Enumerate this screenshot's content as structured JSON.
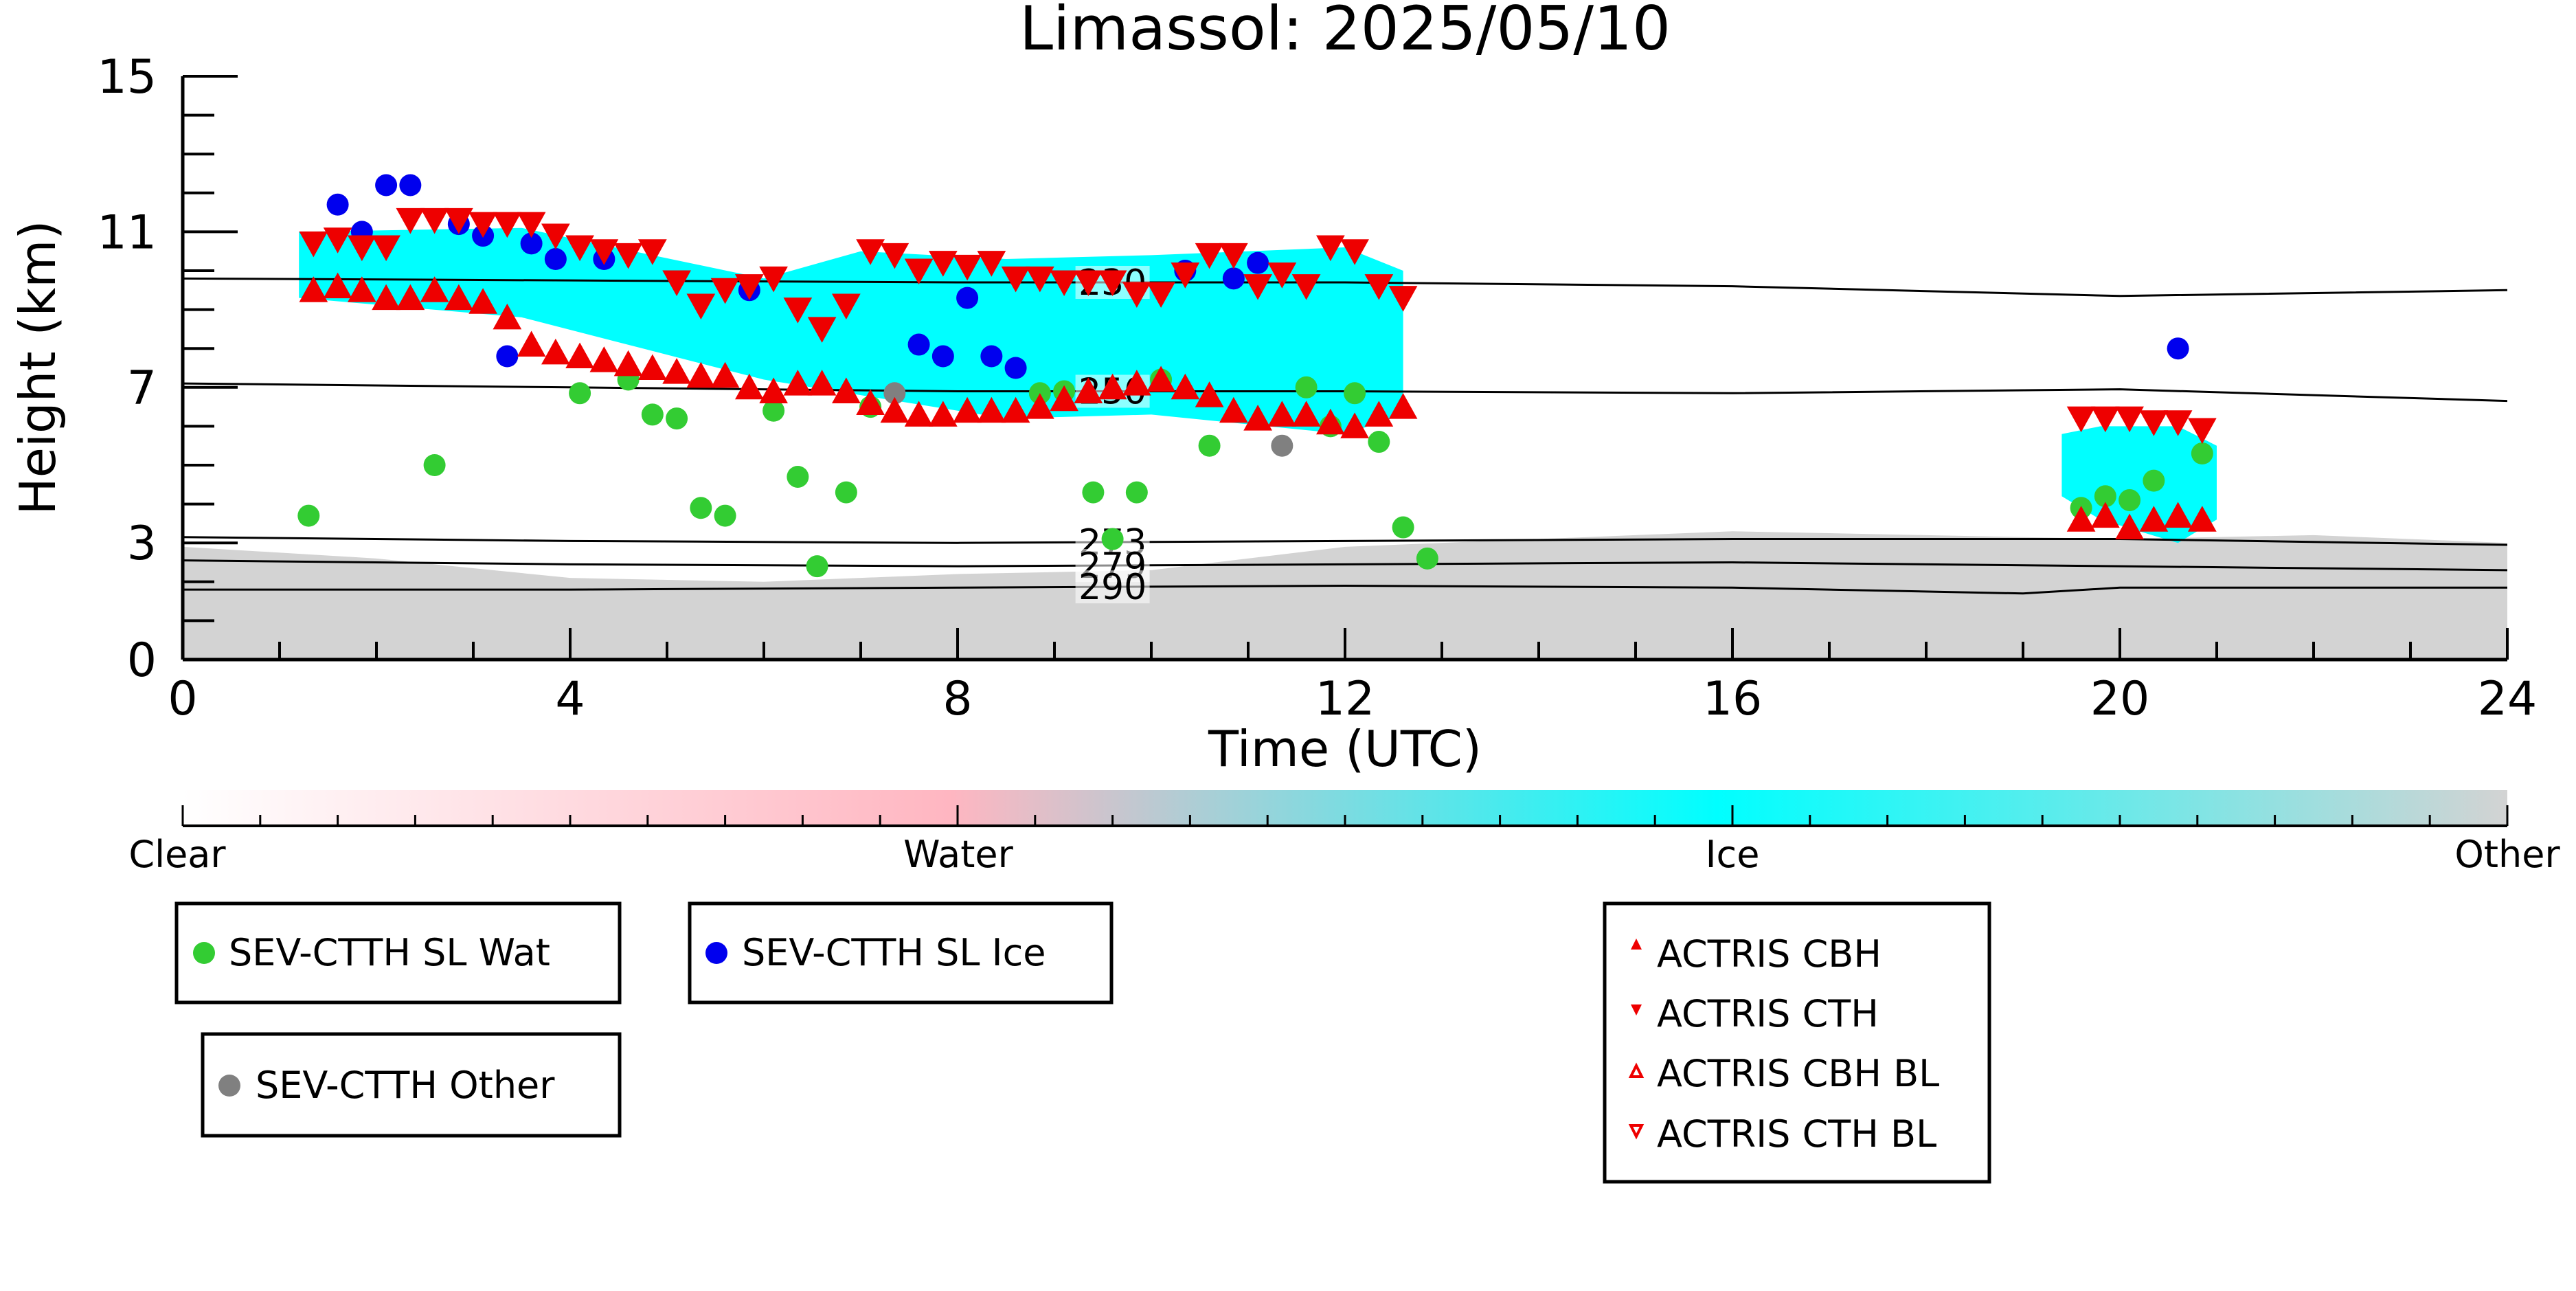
{
  "chart_data": {
    "type": "scatter",
    "title": "Limassol: 2025/05/10",
    "xlabel": "Time (UTC)",
    "ylabel": "Height (km)",
    "xlim": [
      0,
      24
    ],
    "ylim": [
      0,
      15
    ],
    "x_ticks": [
      "0",
      "4",
      "8",
      "12",
      "16",
      "20",
      "24"
    ],
    "y_ticks": [
      "0",
      "3",
      "7",
      "11",
      "15"
    ],
    "colorbar": {
      "labels": [
        "Clear",
        "Water",
        "Ice",
        "Other"
      ],
      "colors": [
        "#ffffff",
        "#ffb6c1",
        "#00ffff",
        "#d3d3d3"
      ]
    },
    "isotherms": [
      {
        "label": "230",
        "x": [
          0,
          4,
          8,
          12,
          16,
          20,
          24
        ],
        "y": [
          9.8,
          9.75,
          9.7,
          9.7,
          9.6,
          9.35,
          9.5
        ]
      },
      {
        "label": "250",
        "x": [
          0,
          4,
          8,
          12,
          16,
          20,
          24
        ],
        "y": [
          7.1,
          7.0,
          6.9,
          6.9,
          6.85,
          6.95,
          6.65
        ]
      },
      {
        "label": "273",
        "x": [
          0,
          4,
          8,
          12,
          16,
          20,
          24
        ],
        "y": [
          3.15,
          3.05,
          3.0,
          3.05,
          3.1,
          3.1,
          2.95
        ]
      },
      {
        "label": "279",
        "x": [
          0,
          4,
          8,
          12,
          16,
          20,
          24
        ],
        "y": [
          2.55,
          2.45,
          2.4,
          2.45,
          2.5,
          2.4,
          2.3
        ]
      },
      {
        "label": "290",
        "x": [
          0,
          4,
          8,
          12,
          16,
          19,
          20,
          24
        ],
        "y": [
          1.8,
          1.8,
          1.85,
          1.9,
          1.85,
          1.7,
          1.85,
          1.85
        ]
      }
    ],
    "background_clutter": {
      "color": "#d3d3d3",
      "x": [
        0,
        2,
        4,
        6,
        8,
        10,
        12,
        14,
        16,
        18,
        20,
        22,
        24
      ],
      "top": [
        2.9,
        2.6,
        2.1,
        2.0,
        2.2,
        2.3,
        2.9,
        3.1,
        3.3,
        3.2,
        3.1,
        3.2,
        3.0
      ]
    },
    "cloud_regions": [
      {
        "color": "#00ffff",
        "x": [
          1.2,
          3.5,
          6.0,
          7.0,
          8.5,
          10.0,
          12.0,
          12.6
        ],
        "top": [
          11.0,
          11.1,
          9.8,
          10.5,
          10.3,
          10.4,
          10.6,
          10.0
        ],
        "bottom": [
          9.3,
          8.8,
          7.2,
          6.8,
          6.2,
          6.3,
          5.8,
          6.3
        ]
      },
      {
        "color": "#00ffff",
        "x": [
          19.4,
          19.8,
          20.6,
          21.0
        ],
        "top": [
          5.8,
          6.0,
          6.0,
          5.5
        ],
        "bottom": [
          4.2,
          3.6,
          3.0,
          3.6
        ]
      }
    ],
    "series": [
      {
        "name": "SEV-CTTH SL Wat",
        "marker": "circle",
        "color": "#33cc33",
        "x": [
          1.3,
          2.6,
          4.1,
          4.6,
          4.85,
          5.1,
          5.35,
          5.6,
          6.1,
          6.35,
          6.55,
          6.85,
          7.1,
          8.85,
          9.1,
          9.4,
          9.6,
          9.85,
          10.1,
          10.6,
          11.6,
          11.85,
          12.1,
          12.35,
          12.6,
          12.85,
          19.6,
          19.85,
          20.1,
          20.35,
          20.85
        ],
        "y": [
          3.7,
          5.0,
          6.85,
          7.2,
          6.3,
          6.2,
          3.9,
          3.7,
          6.4,
          4.7,
          2.4,
          4.3,
          6.5,
          6.85,
          6.9,
          4.3,
          3.1,
          4.3,
          7.2,
          5.5,
          7.0,
          6.0,
          6.85,
          5.6,
          3.4,
          2.6,
          3.9,
          4.2,
          4.1,
          4.6,
          5.3
        ]
      },
      {
        "name": "SEV-CTTH SL Ice",
        "marker": "circle",
        "color": "#0000ee",
        "x": [
          1.6,
          1.85,
          2.1,
          2.35,
          2.85,
          3.1,
          3.35,
          3.6,
          3.85,
          4.35,
          5.85,
          7.6,
          7.85,
          8.1,
          8.35,
          8.6,
          10.35,
          10.85,
          11.1,
          20.6
        ],
        "y": [
          11.7,
          11.0,
          12.2,
          12.2,
          11.2,
          10.9,
          7.8,
          10.7,
          10.3,
          10.3,
          9.5,
          8.1,
          7.8,
          9.3,
          7.8,
          7.5,
          10.0,
          9.8,
          10.2,
          8.0
        ]
      },
      {
        "name": "SEV-CTTH Other",
        "marker": "circle",
        "color": "#808080",
        "x": [
          7.35,
          11.35
        ],
        "y": [
          6.85,
          5.5
        ]
      },
      {
        "name": "ACTRIS CBH",
        "marker": "triangle-up",
        "color": "#ee0000",
        "x": [
          1.35,
          1.6,
          1.85,
          2.1,
          2.35,
          2.6,
          2.85,
          3.1,
          3.35,
          3.6,
          3.85,
          4.1,
          4.35,
          4.6,
          4.85,
          5.1,
          5.35,
          5.6,
          5.85,
          6.1,
          6.35,
          6.6,
          6.85,
          7.1,
          7.35,
          7.6,
          7.85,
          8.1,
          8.35,
          8.6,
          8.85,
          9.1,
          9.35,
          9.6,
          9.85,
          10.1,
          10.35,
          10.6,
          10.85,
          11.1,
          11.35,
          11.6,
          11.85,
          12.1,
          12.35,
          12.6,
          19.6,
          19.85,
          20.1,
          20.35,
          20.6,
          20.85
        ],
        "y": [
          9.5,
          9.6,
          9.5,
          9.3,
          9.3,
          9.5,
          9.3,
          9.2,
          8.8,
          8.1,
          7.9,
          7.8,
          7.7,
          7.6,
          7.5,
          7.4,
          7.3,
          7.3,
          7.0,
          6.9,
          7.1,
          7.1,
          6.9,
          6.6,
          6.4,
          6.3,
          6.3,
          6.4,
          6.4,
          6.4,
          6.5,
          6.7,
          6.9,
          7.0,
          7.1,
          7.2,
          7.0,
          6.8,
          6.4,
          6.2,
          6.3,
          6.3,
          6.1,
          6.0,
          6.3,
          6.5,
          3.6,
          3.7,
          3.4,
          3.6,
          3.7,
          3.6
        ]
      },
      {
        "name": "ACTRIS CTH",
        "marker": "triangle-down",
        "color": "#ee0000",
        "x": [
          1.35,
          1.6,
          1.85,
          2.1,
          2.35,
          2.6,
          2.85,
          3.1,
          3.35,
          3.6,
          3.85,
          4.1,
          4.35,
          4.6,
          4.85,
          5.1,
          5.35,
          5.6,
          5.85,
          6.1,
          6.35,
          6.6,
          6.85,
          7.1,
          7.35,
          7.6,
          7.85,
          8.1,
          8.35,
          8.6,
          8.85,
          9.1,
          9.35,
          9.6,
          9.85,
          10.1,
          10.35,
          10.6,
          10.85,
          11.1,
          11.35,
          11.6,
          11.85,
          12.1,
          12.35,
          12.6,
          19.6,
          19.85,
          20.1,
          20.35,
          20.6,
          20.85
        ],
        "y": [
          10.7,
          10.8,
          10.6,
          10.6,
          11.3,
          11.3,
          11.3,
          11.2,
          11.2,
          11.2,
          10.9,
          10.6,
          10.5,
          10.4,
          10.5,
          9.7,
          9.1,
          9.5,
          9.6,
          9.8,
          9.0,
          8.5,
          9.1,
          10.5,
          10.4,
          10.0,
          10.2,
          10.1,
          10.2,
          9.8,
          9.8,
          9.7,
          9.7,
          9.7,
          9.4,
          9.4,
          9.9,
          10.4,
          10.4,
          9.6,
          9.9,
          9.6,
          10.6,
          10.5,
          9.6,
          9.3,
          6.2,
          6.2,
          6.2,
          6.1,
          6.1,
          5.9
        ]
      },
      {
        "name": "ACTRIS CBH BL",
        "marker": "triangle-up-open",
        "color": "#ee0000",
        "x": [],
        "y": []
      },
      {
        "name": "ACTRIS CTH BL",
        "marker": "triangle-down-open",
        "color": "#ee0000",
        "x": [],
        "y": []
      }
    ],
    "legends": [
      {
        "entries": [
          "SEV-CTTH SL Wat"
        ]
      },
      {
        "entries": [
          "SEV-CTTH SL Ice"
        ]
      },
      {
        "entries": [
          "SEV-CTTH Other"
        ]
      },
      {
        "entries": [
          "ACTRIS CBH",
          "ACTRIS CTH",
          "ACTRIS CBH BL",
          "ACTRIS CTH BL"
        ]
      }
    ]
  }
}
